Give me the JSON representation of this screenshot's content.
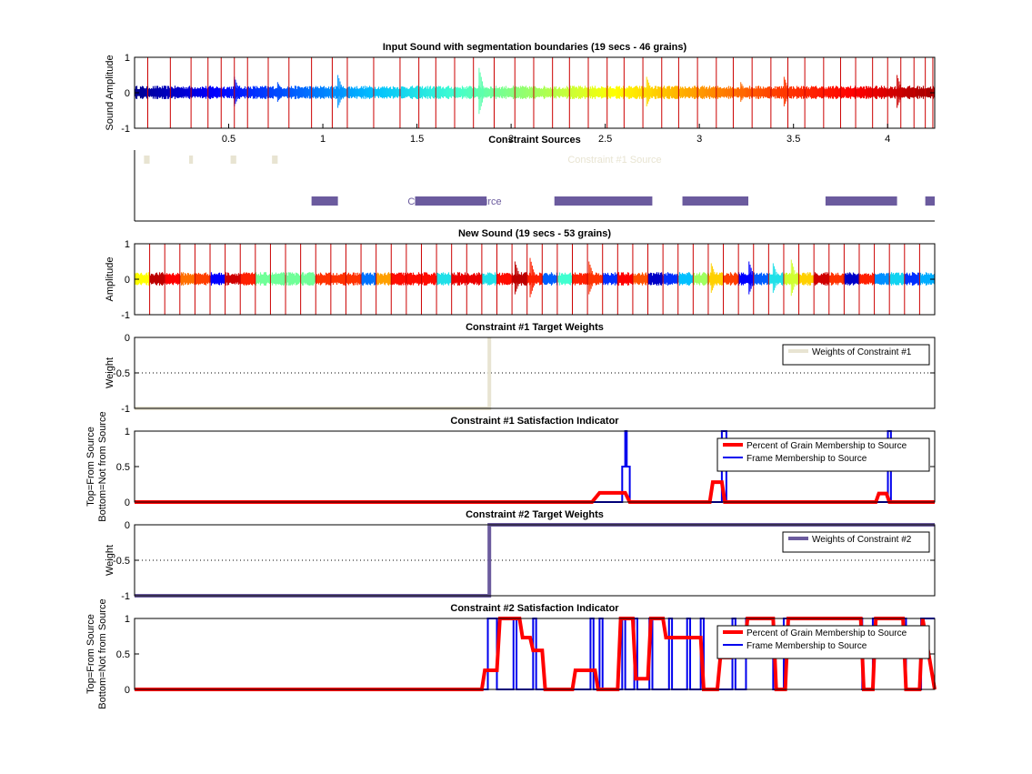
{
  "colors": {
    "boundary": "#cc0000",
    "constraint1": "#e8e4d2",
    "constraint2": "#6b5b9e",
    "grain": "#ff0000",
    "frame": "#0000ee",
    "axis": "#000000",
    "jet": [
      "#00008f",
      "#0000ff",
      "#0060ff",
      "#00c0ff",
      "#40ffd0",
      "#a0ff60",
      "#ffff00",
      "#ffa000",
      "#ff4000",
      "#ff0000",
      "#a00000"
    ]
  },
  "chart_data": [
    {
      "id": "input",
      "type": "line",
      "title": "Input Sound with segmentation boundaries (19 secs - 46 grains)",
      "ylabel": "Sound Amplitude",
      "xlim": [
        0,
        4.25
      ],
      "ylim": [
        -1,
        1
      ],
      "yticks": [
        -1,
        0,
        1
      ],
      "ytick_labels": [
        "-1",
        "0",
        "1"
      ],
      "xticks": [
        0.5,
        1,
        1.5,
        2,
        2.5,
        3,
        3.5,
        4
      ],
      "xtick_labels": [
        "0.5",
        "1",
        "1.5",
        "2",
        "2.5",
        "3",
        "3.5",
        "4"
      ],
      "boundaries": [
        0.07,
        0.19,
        0.3,
        0.39,
        0.46,
        0.53,
        0.6,
        0.71,
        0.82,
        0.94,
        1.05,
        1.13,
        1.27,
        1.41,
        1.51,
        1.6,
        1.7,
        1.8,
        1.91,
        2.02,
        2.12,
        2.22,
        2.31,
        2.41,
        2.51,
        2.6,
        2.7,
        2.8,
        2.89,
        2.99,
        3.09,
        3.18,
        3.28,
        3.38,
        3.47,
        3.56,
        3.66,
        3.75,
        3.83,
        3.92,
        4.0,
        4.07,
        4.14,
        4.2,
        4.24
      ],
      "spikes": [
        [
          0.53,
          0.45
        ],
        [
          0.76,
          0.3
        ],
        [
          1.08,
          0.5
        ],
        [
          1.83,
          0.7
        ],
        [
          2.72,
          0.45
        ],
        [
          3.22,
          0.3
        ],
        [
          3.45,
          0.45
        ],
        [
          4.05,
          0.5
        ]
      ]
    },
    {
      "id": "sources",
      "type": "bar",
      "title": "Constraint Sources",
      "xlim": [
        0,
        4.25
      ],
      "series": [
        {
          "name": "Constraint #1 Source",
          "segments": [
            [
              0.05,
              0.08
            ],
            [
              0.29,
              0.31
            ],
            [
              0.51,
              0.54
            ],
            [
              0.73,
              0.76
            ]
          ]
        },
        {
          "name": "Constraint #2 Source",
          "segments": [
            [
              0.94,
              1.08
            ],
            [
              1.49,
              1.87
            ],
            [
              2.23,
              2.75
            ],
            [
              2.91,
              3.26
            ],
            [
              3.67,
              4.05
            ],
            [
              4.2,
              4.25
            ]
          ]
        }
      ]
    },
    {
      "id": "new",
      "type": "line",
      "title": "New Sound (19 secs - 53 grains)",
      "ylabel": "Amplitude",
      "xlim": [
        0,
        53
      ],
      "ylim": [
        -1,
        1
      ],
      "yticks": [
        -1,
        0,
        1
      ],
      "ytick_labels": [
        "-1",
        "0",
        "1"
      ],
      "grain_colors": [
        0.6,
        0.97,
        0.9,
        0.75,
        0.8,
        0.1,
        0.95,
        0.85,
        0.45,
        0.45,
        0.45,
        0.45,
        0.82,
        0.82,
        0.82,
        0.22,
        0.7,
        0.88,
        0.88,
        0.88,
        0.35,
        0.92,
        0.92,
        0.35,
        0.88,
        0.97,
        0.85,
        0.2,
        0.4,
        0.85,
        0.82,
        0.15,
        0.9,
        0.78,
        0.05,
        0.15,
        0.3,
        0.5,
        0.65,
        0.8,
        0.1,
        0.2,
        0.35,
        0.55,
        0.65,
        0.95,
        0.82,
        0.05,
        0.85,
        0.25,
        0.33,
        0.15,
        0.28
      ],
      "spikes": [
        [
          25.2,
          0.5
        ],
        [
          26.2,
          0.6
        ],
        [
          30.1,
          0.5
        ],
        [
          38.2,
          0.45
        ],
        [
          40.7,
          0.5
        ],
        [
          42.3,
          0.45
        ],
        [
          43.5,
          0.55
        ]
      ]
    },
    {
      "id": "w1",
      "type": "line",
      "title": "Constraint #1 Target Weights",
      "ylabel": "Weight",
      "xlim": [
        0,
        53
      ],
      "ylim": [
        -1,
        0
      ],
      "yticks": [
        -1,
        -0.5,
        0
      ],
      "ytick_labels": [
        "-1",
        "-0.5",
        "0"
      ],
      "series": [
        {
          "name": "Weights of Constraint #1",
          "x": [
            0,
            23.5,
            23.5,
            23.5
          ],
          "y": [
            -1,
            -1,
            0,
            -1
          ]
        }
      ]
    },
    {
      "id": "s1",
      "type": "line",
      "title": "Constraint #1 Satisfaction Indicator",
      "ylabel": [
        "Top=From Source",
        "Bottom=Not from Source"
      ],
      "xlim": [
        0,
        53
      ],
      "ylim": [
        0,
        1
      ],
      "yticks": [
        0,
        0.5,
        1
      ],
      "ytick_labels": [
        "0",
        "0.5",
        "1"
      ],
      "series": [
        {
          "name": "Percent of Grain Membership to Source",
          "x": [
            0,
            30.3,
            30.8,
            32.5,
            32.8,
            38.1,
            38.3,
            38.9,
            39.1,
            49.1,
            49.3,
            49.8,
            50.0,
            53
          ],
          "y": [
            0,
            0,
            0.13,
            0.13,
            0,
            0,
            0.28,
            0.28,
            0,
            0,
            0.12,
            0.12,
            0,
            0
          ]
        },
        {
          "name": "Frame Membership to Source",
          "x": [
            0,
            32.3,
            32.3,
            32.5,
            32.5,
            32.6,
            32.6,
            32.8,
            32.8,
            38.9,
            38.9,
            39.2,
            39.2,
            49.9,
            49.9,
            50.1,
            50.1,
            53
          ],
          "y": [
            0,
            0,
            0.5,
            0.5,
            1,
            1,
            0.5,
            0.5,
            0,
            0,
            1,
            1,
            0,
            0,
            1,
            1,
            0,
            0
          ]
        }
      ]
    },
    {
      "id": "w2",
      "type": "line",
      "title": "Constraint #2 Target Weights",
      "ylabel": "Weight",
      "xlim": [
        0,
        53
      ],
      "ylim": [
        -1,
        0
      ],
      "yticks": [
        -1,
        -0.5,
        0
      ],
      "ytick_labels": [
        "-1",
        "-0.5",
        "0"
      ],
      "series": [
        {
          "name": "Weights of Constraint #2",
          "x": [
            0,
            23.5,
            23.5,
            53
          ],
          "y": [
            -1,
            -1,
            0,
            0
          ]
        }
      ]
    },
    {
      "id": "s2",
      "type": "line",
      "title": "Constraint #2 Satisfaction Indicator",
      "ylabel": [
        "Top=From Source",
        "Bottom=Not from Source"
      ],
      "xlim": [
        0,
        53
      ],
      "ylim": [
        0,
        1
      ],
      "yticks": [
        0,
        0.5,
        1
      ],
      "ytick_labels": [
        "0",
        "0.5",
        "1"
      ],
      "series": [
        {
          "name": "Percent of Grain Membership to Source",
          "x": [
            0,
            23.0,
            23.2,
            24.0,
            24.2,
            25.5,
            25.7,
            26.2,
            26.4,
            27.0,
            27.2,
            29.0,
            29.2,
            30.5,
            30.7,
            32.0,
            32.2,
            33.0,
            33.2,
            34.0,
            34.2,
            35.0,
            35.2,
            35.5,
            35.7,
            37.5,
            37.7,
            38.6,
            38.8,
            39.5,
            39.7,
            40.4,
            40.6,
            42.3,
            42.5,
            43.1,
            43.3,
            48.1,
            48.3,
            48.9,
            49.1,
            50.9,
            51.1,
            52.0,
            52.2,
            53
          ],
          "y": [
            0,
            0,
            0.27,
            0.27,
            1,
            1,
            0.73,
            0.73,
            0.55,
            0.55,
            0,
            0,
            0.27,
            0.27,
            0,
            0,
            1,
            1,
            0.15,
            0.15,
            1,
            1,
            0.73,
            0.73,
            0.73,
            0.73,
            0,
            0,
            0.45,
            0.45,
            0.55,
            0.55,
            1,
            1,
            0,
            0,
            1,
            1,
            0,
            0,
            1,
            1,
            0,
            0,
            1,
            0
          ]
        },
        {
          "name": "Frame Membership to Source",
          "x": [
            0,
            23.4,
            23.4,
            24.0,
            24.0,
            25.1,
            25.1,
            25.3,
            25.3,
            26.4,
            26.4,
            26.6,
            26.6,
            30.2,
            30.2,
            30.4,
            30.4,
            30.8,
            30.8,
            31.0,
            31.0,
            32.3,
            32.3,
            32.5,
            32.5,
            33.1,
            33.1,
            33.3,
            33.3,
            34.1,
            34.1,
            34.3,
            34.3,
            35.4,
            35.4,
            35.6,
            35.6,
            36.6,
            36.6,
            36.8,
            36.8,
            37.5,
            37.5,
            37.7,
            37.7,
            39.6,
            39.6,
            39.8,
            39.8,
            40.5,
            40.5,
            42.3,
            42.3,
            43.0,
            43.0,
            48.2,
            48.2,
            48.9,
            48.9,
            51.1,
            51.1,
            52.1,
            52.1,
            53
          ],
          "y": [
            0,
            0,
            1,
            1,
            0,
            0,
            1,
            1,
            0,
            0,
            1,
            1,
            0,
            0,
            1,
            1,
            0,
            0,
            1,
            1,
            0,
            0,
            1,
            1,
            0,
            0,
            1,
            1,
            0,
            0,
            1,
            1,
            0,
            0,
            1,
            1,
            0,
            0,
            1,
            1,
            0,
            0,
            1,
            1,
            0,
            0,
            1,
            1,
            0,
            0,
            1,
            1,
            0,
            0,
            1,
            1,
            0,
            0,
            1,
            1,
            0,
            0,
            1,
            1
          ]
        }
      ]
    }
  ]
}
